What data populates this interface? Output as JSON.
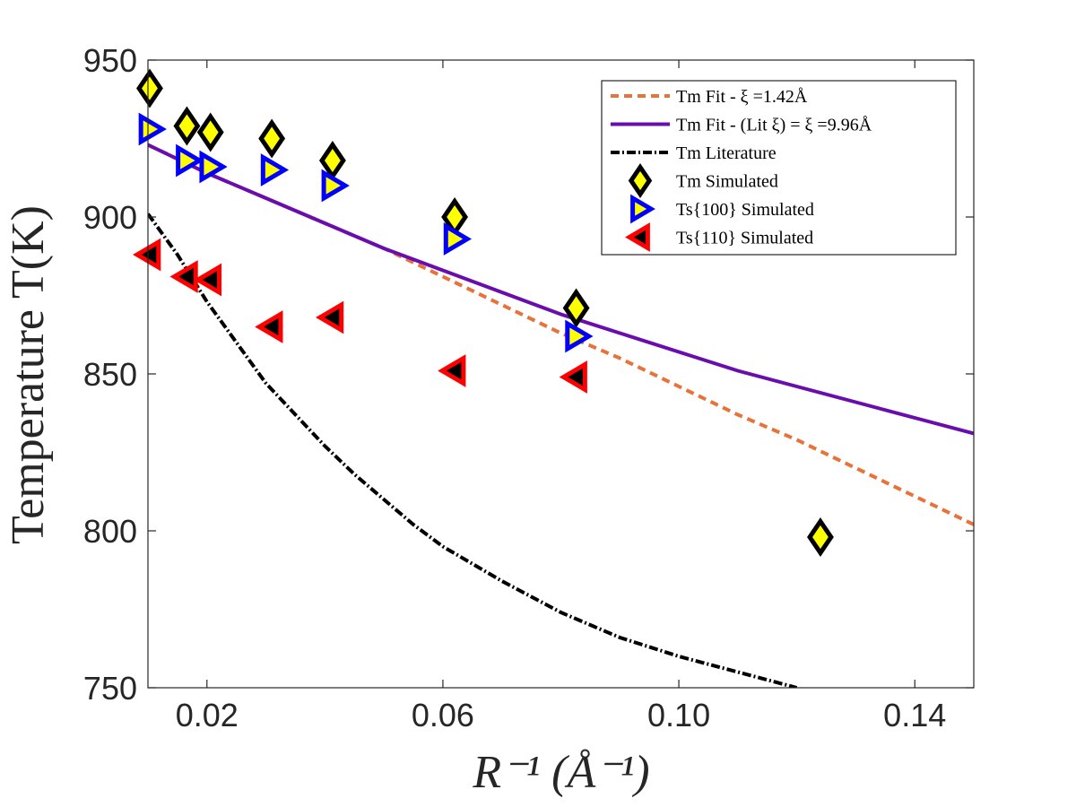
{
  "chart_data": {
    "type": "scatter",
    "title": "",
    "xlabel": "R⁻¹ (Å⁻¹)",
    "ylabel": "Temperature T(K)",
    "xlim": [
      0.01,
      0.15
    ],
    "ylim": [
      750,
      950
    ],
    "xticks": [
      0.02,
      0.06,
      0.1,
      0.14
    ],
    "xtick_labels": [
      "0.02",
      "0.06",
      "0.10",
      "0.14"
    ],
    "yticks": [
      750,
      800,
      850,
      900,
      950
    ],
    "ytick_labels": [
      "750",
      "800",
      "850",
      "900",
      "950"
    ],
    "grid": false,
    "legend_position": "top-right",
    "series": [
      {
        "name": "T_m Fit - ξ =1.42Å",
        "legend_label": "Tm Fit - ξ =1.42Å",
        "kind": "line",
        "style": "dashed",
        "color": "#e8733a",
        "x": [
          0.01,
          0.02,
          0.03,
          0.04,
          0.05,
          0.06,
          0.07,
          0.08,
          0.09,
          0.1,
          0.11,
          0.12,
          0.13,
          0.14,
          0.15
        ],
        "y": [
          923,
          914,
          906,
          898,
          890,
          881,
          872,
          863,
          855,
          846,
          837,
          829,
          820,
          811,
          802
        ]
      },
      {
        "name": "T_m Fit - (Lit ξ) = ξ =9.96Å",
        "legend_label": "Tm Fit - (Lit ξ) = ξ =9.96Å",
        "kind": "line",
        "style": "solid",
        "color": "#6a0dad",
        "x": [
          0.01,
          0.02,
          0.03,
          0.04,
          0.05,
          0.06,
          0.07,
          0.08,
          0.09,
          0.1,
          0.11,
          0.12,
          0.13,
          0.14,
          0.15
        ],
        "y": [
          923,
          914,
          906,
          898,
          890,
          883,
          876,
          869,
          863,
          857,
          851,
          846,
          841,
          836,
          831
        ]
      },
      {
        "name": "T_m Literature",
        "legend_label": "Tm Literature",
        "kind": "line",
        "style": "dashdot",
        "color": "#000000",
        "x": [
          0.01,
          0.015,
          0.02,
          0.025,
          0.03,
          0.035,
          0.04,
          0.045,
          0.05,
          0.055,
          0.06,
          0.07,
          0.08,
          0.09,
          0.1,
          0.11,
          0.12
        ],
        "y": [
          901,
          888,
          873,
          860,
          847,
          837,
          827,
          818,
          810,
          802,
          795,
          784,
          774,
          766,
          760,
          755,
          750
        ]
      },
      {
        "name": "T_m Simulated",
        "legend_label": "Tm Simulated",
        "kind": "markers",
        "marker": "diamond",
        "color": "#ffff00",
        "edge_color": "#000000",
        "x": [
          0.0103,
          0.0166,
          0.0206,
          0.031,
          0.0413,
          0.062,
          0.0826,
          0.124
        ],
        "y": [
          941,
          929,
          927,
          925,
          918,
          900,
          871,
          798
        ]
      },
      {
        "name": "T_s{100} Simulated",
        "legend_label": "Ts{100} Simulated",
        "kind": "markers",
        "marker": "triangle-right",
        "color": "#ffff00",
        "edge_color": "#0000ff",
        "x": [
          0.0103,
          0.0166,
          0.0206,
          0.031,
          0.0413,
          0.062,
          0.0826
        ],
        "y": [
          928,
          918,
          916,
          915,
          910,
          893,
          862
        ]
      },
      {
        "name": "T_s{110} Simulated",
        "legend_label": "Ts{110} Simulated",
        "kind": "markers",
        "marker": "triangle-left",
        "color": "#000000",
        "edge_color": "#ff0000",
        "x": [
          0.0103,
          0.0166,
          0.0206,
          0.031,
          0.0413,
          0.062,
          0.0826
        ],
        "y": [
          888,
          881,
          880,
          865,
          868,
          851,
          849
        ]
      }
    ]
  }
}
